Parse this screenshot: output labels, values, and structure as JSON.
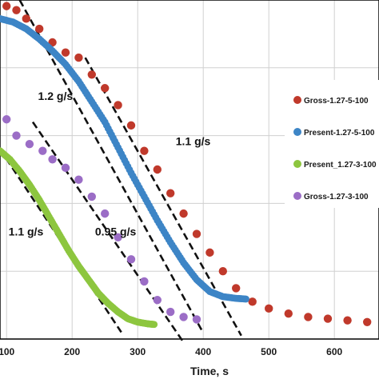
{
  "chart_data": {
    "type": "scatter",
    "xlabel": "Time, s",
    "xlim": [
      90,
      650
    ],
    "ylim": [
      0,
      1
    ],
    "x_ticks": [
      "100",
      "200",
      "300",
      "400",
      "500",
      "600"
    ],
    "grid": true,
    "legend_position": "right",
    "series": [
      {
        "name": "Gross-1.27-5-100",
        "color": "#c0392b",
        "marker": "large-dot",
        "x": [
          100,
          115,
          130,
          150,
          170,
          190,
          210,
          230,
          250,
          270,
          290,
          310,
          330,
          350,
          370,
          390,
          410,
          430,
          450,
          475,
          500,
          530,
          560,
          590,
          620,
          650
        ],
        "y": [
          0.982,
          0.97,
          0.945,
          0.915,
          0.875,
          0.845,
          0.83,
          0.78,
          0.74,
          0.69,
          0.63,
          0.555,
          0.5,
          0.43,
          0.37,
          0.31,
          0.255,
          0.2,
          0.15,
          0.11,
          0.09,
          0.075,
          0.065,
          0.06,
          0.055,
          0.05
        ]
      },
      {
        "name": "Present-1.27-5-100",
        "color": "#3d85c6",
        "marker": "dense-dot",
        "x": [
          90,
          110,
          130,
          150,
          170,
          190,
          210,
          230,
          250,
          270,
          290,
          310,
          330,
          350,
          370,
          390,
          410,
          430,
          450,
          465
        ],
        "y": [
          0.945,
          0.935,
          0.915,
          0.885,
          0.85,
          0.81,
          0.76,
          0.7,
          0.64,
          0.565,
          0.49,
          0.42,
          0.35,
          0.285,
          0.225,
          0.175,
          0.14,
          0.125,
          0.12,
          0.118
        ]
      },
      {
        "name": "Present_1.27-3-100",
        "color": "#8dc63f",
        "marker": "dense-dot",
        "x": [
          90,
          105,
          120,
          135,
          150,
          165,
          180,
          195,
          210,
          225,
          240,
          255,
          270,
          285,
          300,
          315,
          325
        ],
        "y": [
          0.555,
          0.53,
          0.495,
          0.455,
          0.41,
          0.36,
          0.31,
          0.26,
          0.215,
          0.175,
          0.135,
          0.105,
          0.08,
          0.06,
          0.05,
          0.045,
          0.043
        ]
      },
      {
        "name": "Gross-1.27-3-100",
        "color": "#9b6dc6",
        "marker": "large-dot",
        "x": [
          100,
          115,
          135,
          155,
          170,
          190,
          210,
          230,
          250,
          270,
          290,
          310,
          330,
          350,
          370,
          390
        ],
        "y": [
          0.648,
          0.6,
          0.575,
          0.555,
          0.53,
          0.505,
          0.47,
          0.42,
          0.37,
          0.3,
          0.235,
          0.17,
          0.115,
          0.08,
          0.065,
          0.058
        ]
      }
    ],
    "fit_lines": [
      {
        "x": [
          120,
          400
        ],
        "y": [
          1.0,
          0.018
        ]
      },
      {
        "x": [
          220,
          458
        ],
        "y": [
          0.83,
          0.01
        ]
      },
      {
        "x": [
          140,
          370
        ],
        "y": [
          0.64,
          -0.01
        ]
      },
      {
        "x": [
          90,
          275
        ],
        "y": [
          0.56,
          0.02
        ]
      }
    ],
    "annotations": [
      {
        "text": "1.2 g/s",
        "x": 148,
        "y": 0.705
      },
      {
        "text": "1.1 g/s",
        "x": 358,
        "y": 0.572
      },
      {
        "text": "1.1 g/s",
        "x": 103,
        "y": 0.305
      },
      {
        "text": "0.95 g/s",
        "x": 235,
        "y": 0.305
      }
    ]
  }
}
